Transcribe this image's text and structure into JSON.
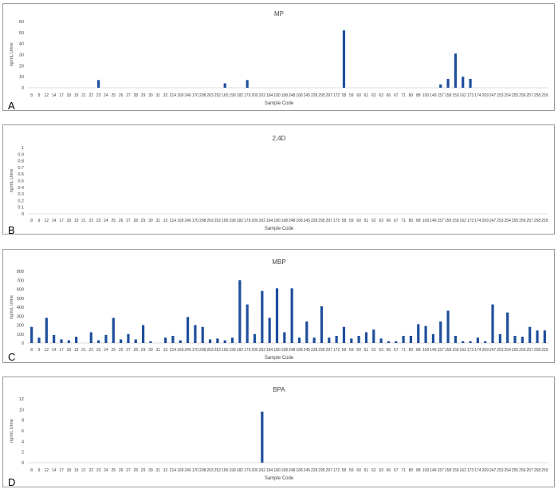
{
  "categories": [
    "8",
    "9",
    "12",
    "14",
    "17",
    "18",
    "19",
    "21",
    "22",
    "23",
    "24",
    "25",
    "26",
    "27",
    "28",
    "29",
    "30",
    "31",
    "32",
    "214",
    "169",
    "246",
    "170",
    "298",
    "263",
    "252",
    "165",
    "199",
    "182",
    "179",
    "200",
    "262",
    "184",
    "180",
    "198",
    "248",
    "168",
    "245",
    "228",
    "295",
    "297",
    "172",
    "58",
    "59",
    "60",
    "61",
    "62",
    "63",
    "66",
    "67",
    "71",
    "80",
    "88",
    "100",
    "149",
    "157",
    "158",
    "159",
    "162",
    "173",
    "174",
    "209",
    "247",
    "253",
    "254",
    "255",
    "256",
    "257",
    "258",
    "259"
  ],
  "chart_data": [
    {
      "type": "bar",
      "panel_label": "A",
      "title": "MP",
      "xlabel": "Sample Code",
      "ylabel": "ng/mL Urine",
      "ylim": [
        0,
        60
      ],
      "yticks": [
        0,
        10,
        20,
        30,
        40,
        50,
        60
      ],
      "values": [
        0,
        0,
        0,
        0,
        0,
        0,
        0,
        0,
        0,
        7,
        0,
        0,
        0,
        0,
        0,
        0,
        0,
        0,
        0,
        0,
        0,
        0,
        0,
        0,
        0,
        0,
        4,
        0,
        0,
        7,
        0,
        0,
        0,
        0,
        0,
        0,
        0,
        0,
        0,
        0,
        0,
        0,
        52,
        0,
        0,
        0,
        0,
        0,
        0,
        0,
        0,
        0,
        0,
        0,
        0,
        3,
        8,
        31,
        10,
        8,
        0,
        0,
        0,
        0,
        0,
        0,
        0,
        0,
        0,
        0
      ],
      "color": "#1f4e9c"
    },
    {
      "type": "bar",
      "panel_label": "B",
      "title": "2,4D",
      "xlabel": "Sample Code",
      "ylabel": "ng/mL Urine",
      "ylim": [
        0,
        1
      ],
      "yticks": [
        0,
        0.1,
        0.2,
        0.3,
        0.4,
        0.5,
        0.6,
        0.7,
        0.8,
        0.9,
        1
      ],
      "values": [
        0,
        0,
        0,
        0,
        0,
        0,
        0,
        0,
        0,
        0,
        0,
        0,
        0,
        0,
        0,
        0,
        0,
        0,
        0,
        0,
        0,
        0,
        0,
        0,
        0,
        0,
        0,
        0,
        0,
        0,
        0,
        0,
        0,
        0,
        0,
        0,
        0,
        0,
        0,
        0,
        0,
        0,
        0,
        0,
        0,
        0,
        0,
        0,
        0,
        0,
        0,
        0,
        0,
        0,
        0,
        0,
        0,
        0,
        0,
        0,
        0,
        0,
        0,
        0,
        0,
        0,
        0,
        0,
        0,
        0
      ],
      "color": "#1f4e9c"
    },
    {
      "type": "bar",
      "panel_label": "C",
      "title": "MBP",
      "xlabel": "Sample Code",
      "ylabel": "ng/mL Urine",
      "ylim": [
        0,
        800
      ],
      "yticks": [
        0,
        100,
        200,
        300,
        400,
        500,
        600,
        700,
        800
      ],
      "values": [
        180,
        60,
        280,
        90,
        40,
        30,
        70,
        0,
        120,
        30,
        90,
        280,
        40,
        100,
        40,
        200,
        20,
        0,
        60,
        80,
        30,
        290,
        200,
        180,
        40,
        50,
        30,
        60,
        700,
        430,
        100,
        580,
        280,
        610,
        120,
        610,
        60,
        240,
        60,
        410,
        60,
        80,
        180,
        50,
        80,
        120,
        150,
        50,
        20,
        20,
        80,
        80,
        210,
        190,
        100,
        240,
        360,
        80,
        20,
        20,
        60,
        20,
        430,
        100,
        340,
        80,
        70,
        180,
        140,
        140
      ],
      "color": "#1f4e9c"
    },
    {
      "type": "bar",
      "panel_label": "D",
      "title": "BPA",
      "xlabel": "Sample Code",
      "ylabel": "ng/mL Urine",
      "ylim": [
        0,
        12
      ],
      "yticks": [
        0,
        2,
        4,
        6,
        8,
        10,
        12
      ],
      "values": [
        0,
        0,
        0,
        0,
        0,
        0,
        0,
        0,
        0,
        0,
        0,
        0,
        0,
        0,
        0,
        0,
        0,
        0,
        0,
        0,
        0,
        0,
        0,
        0,
        0,
        0,
        0,
        0,
        0,
        0,
        0,
        9.6,
        0,
        0,
        0,
        0,
        0,
        0,
        0,
        0,
        0,
        0,
        0,
        0,
        0,
        0,
        0,
        0,
        0,
        0,
        0,
        0,
        0,
        0,
        0,
        0,
        0,
        0,
        0,
        0,
        0,
        0,
        0,
        0,
        0,
        0,
        0,
        0,
        0,
        0
      ],
      "color": "#1f4e9c"
    }
  ]
}
